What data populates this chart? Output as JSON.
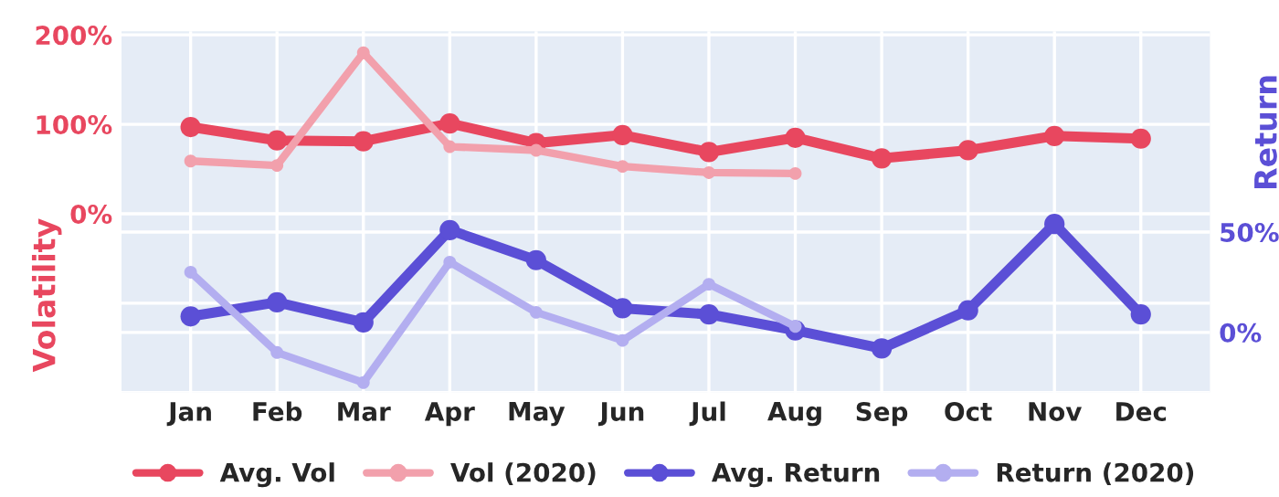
{
  "chart_data": {
    "type": "line",
    "categories": [
      "Jan",
      "Feb",
      "Mar",
      "Apr",
      "May",
      "Jun",
      "Jul",
      "Aug",
      "Sep",
      "Oct",
      "Nov",
      "Dec"
    ],
    "ylabel": "Volatility",
    "y2label": "Return",
    "ylim": [
      -200,
      204
    ],
    "yticks": [
      {
        "value": -200,
        "label": null
      },
      {
        "value": -100,
        "label": null
      },
      {
        "value": 0,
        "label": "0%"
      },
      {
        "value": 100,
        "label": "100%"
      },
      {
        "value": 200,
        "label": "200%"
      }
    ],
    "y2lim": [
      -30,
      150
    ],
    "y2ticks": [
      {
        "value": 0,
        "label": "0%"
      },
      {
        "value": 50,
        "label": "50%"
      }
    ],
    "grid": true,
    "legend": "bottom",
    "marker": "circle",
    "line_style": "solid",
    "series": [
      {
        "name": "Avg. Vol",
        "color": "#e8475f",
        "values": [
          97,
          82,
          81,
          101,
          79,
          88,
          69,
          85,
          62,
          71,
          87,
          84
        ]
      },
      {
        "name": "Vol (2020)",
        "color": "#f2a0ac",
        "values": [
          59,
          54,
          180,
          75,
          71,
          53,
          46,
          45,
          null,
          null,
          null,
          null
        ]
      },
      {
        "name": "Avg. Return",
        "color": "#5b4fd6",
        "axis": "y2",
        "values": [
          8,
          15,
          5,
          51,
          36,
          12,
          9,
          1,
          -8,
          11,
          54,
          9
        ]
      },
      {
        "name": "Return (2020)",
        "color": "#b3aef0",
        "axis": "y2",
        "values": [
          30,
          -10,
          -25,
          35,
          10,
          -4,
          24,
          3,
          null,
          null,
          null,
          null
        ]
      }
    ]
  }
}
